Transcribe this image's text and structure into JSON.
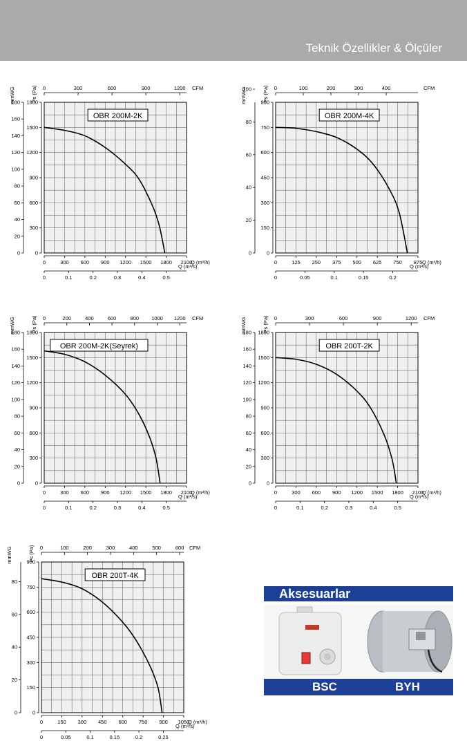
{
  "header": {
    "title": "Teknik Özellikler & Ölçüler"
  },
  "chart_data": [
    {
      "type": "line",
      "title": "OBR 200M-2K",
      "ylabel_left": "mmWG",
      "ylabel_right": "Ps (Pa)",
      "top_axis": {
        "label": "CFM",
        "ticks": [
          "0",
          "300",
          "600",
          "900",
          "1200"
        ],
        "max": 1260
      },
      "pa_ticks": [
        "0",
        "300",
        "600",
        "900",
        "1200",
        "1500",
        "1800"
      ],
      "pa_max": 1800,
      "mmwg_ticks": [
        "0",
        "20",
        "40",
        "60",
        "80",
        "100",
        "120",
        "140",
        "160",
        "180"
      ],
      "mmwg_max": 180,
      "x_ticks": [
        "0",
        "300",
        "600",
        "900",
        "1200",
        "1500",
        "1800",
        "2100"
      ],
      "x_label": "Q (m³/h)",
      "x_max": 2100,
      "bottom_axis": {
        "label": "Q (m³/s)",
        "ticks": [
          "0",
          "0.1",
          "0.2",
          "0.3",
          "0.4",
          "0.5"
        ],
        "max": 0.583
      },
      "grid": true,
      "series": [
        {
          "x": [
            0,
            300,
            600,
            900,
            1200,
            1400,
            1600,
            1700,
            1780
          ],
          "y": [
            1500,
            1465,
            1400,
            1260,
            1060,
            880,
            560,
            320,
            0
          ]
        }
      ]
    },
    {
      "type": "line",
      "title": "OBR 200M-4K",
      "ylabel_left": "mmWG",
      "ylabel_right": "Ps (Pa)",
      "top_axis": {
        "label": "CFM",
        "ticks": [
          "0",
          "100",
          "200",
          "300",
          "400"
        ],
        "max": 515
      },
      "pa_ticks": [
        "0",
        "150",
        "300",
        "450",
        "600",
        "750",
        "900"
      ],
      "pa_max": 900,
      "mmwg_ticks": [
        "0",
        "20",
        "40",
        "60",
        "80",
        "100"
      ],
      "mmwg_max": 92,
      "x_ticks": [
        "0",
        "125",
        "250",
        "375",
        "500",
        "625",
        "750",
        "875"
      ],
      "x_label": "Q (m³/h)",
      "x_max": 875,
      "bottom_axis": {
        "label": "Q (m³/s)",
        "ticks": [
          "0",
          "0.05",
          "0.1",
          "0.15",
          "0.2"
        ],
        "max": 0.243
      },
      "grid": true,
      "series": [
        {
          "x": [
            0,
            125,
            250,
            375,
            500,
            600,
            700,
            760,
            810
          ],
          "y": [
            750,
            745,
            725,
            690,
            620,
            530,
            380,
            240,
            0
          ]
        }
      ]
    },
    {
      "type": "line",
      "title": "OBR 200M-2K(Seyrek)",
      "ylabel_left": "mmWG",
      "ylabel_right": "Ps (Pa)",
      "top_axis": {
        "label": "CFM",
        "ticks": [
          "0",
          "200",
          "400",
          "600",
          "800",
          "1000",
          "1200"
        ],
        "max": 1260
      },
      "pa_ticks": [
        "0",
        "300",
        "600",
        "900",
        "1200",
        "1500",
        "1800"
      ],
      "pa_max": 1800,
      "mmwg_ticks": [
        "0",
        "20",
        "40",
        "60",
        "80",
        "100",
        "120",
        "140",
        "160",
        "180"
      ],
      "mmwg_max": 180,
      "x_ticks": [
        "0",
        "300",
        "600",
        "900",
        "1200",
        "1500",
        "1800",
        "2100"
      ],
      "x_label": "Q (m³/h)",
      "x_max": 2100,
      "bottom_axis": {
        "label": "Q (m³/s)",
        "ticks": [
          "0",
          "0.1",
          "0.2",
          "0.3",
          "0.4",
          "0.5"
        ],
        "max": 0.583
      },
      "grid": true,
      "series": [
        {
          "x": [
            0,
            300,
            600,
            900,
            1200,
            1400,
            1550,
            1650,
            1710
          ],
          "y": [
            1580,
            1540,
            1450,
            1290,
            1060,
            820,
            560,
            300,
            0
          ]
        }
      ]
    },
    {
      "type": "line",
      "title": "OBR 200T-2K",
      "ylabel_left": "mmWG",
      "ylabel_right": "Ps (Pa)",
      "top_axis": {
        "label": "CFM",
        "ticks": [
          "0",
          "300",
          "600",
          "900",
          "1200"
        ],
        "max": 1260
      },
      "pa_ticks": [
        "0",
        "300",
        "600",
        "900",
        "1200",
        "1500",
        "1800"
      ],
      "pa_max": 1800,
      "mmwg_ticks": [
        "0",
        "20",
        "40",
        "60",
        "80",
        "100",
        "120",
        "140",
        "160",
        "180"
      ],
      "mmwg_max": 180,
      "x_ticks": [
        "0",
        "300",
        "600",
        "900",
        "1200",
        "1500",
        "1800",
        "2100"
      ],
      "x_label": "Q (m³/h)",
      "x_max": 2100,
      "bottom_axis": {
        "label": "Q (m³/s)",
        "ticks": [
          "0",
          "0.1",
          "0.2",
          "0.3",
          "0.4",
          "0.5"
        ],
        "max": 0.583
      },
      "grid": true,
      "series": [
        {
          "x": [
            0,
            300,
            600,
            900,
            1200,
            1400,
            1600,
            1720,
            1780
          ],
          "y": [
            1500,
            1480,
            1420,
            1300,
            1100,
            900,
            580,
            280,
            0
          ]
        }
      ]
    },
    {
      "type": "line",
      "title": "OBR 200T-4K",
      "ylabel_left": "mmWG",
      "ylabel_right": "Ps (Pa)",
      "top_axis": {
        "label": "CFM",
        "ticks": [
          "0",
          "100",
          "200",
          "300",
          "400",
          "500",
          "600"
        ],
        "max": 618
      },
      "pa_ticks": [
        "0",
        "150",
        "300",
        "450",
        "600",
        "750",
        "900"
      ],
      "pa_max": 900,
      "mmwg_ticks": [
        "0",
        "20",
        "40",
        "60",
        "80"
      ],
      "mmwg_max": 92,
      "x_ticks": [
        "0",
        "150",
        "300",
        "450",
        "600",
        "750",
        "900",
        "1050"
      ],
      "x_label": "Q (m³/h)",
      "x_max": 1050,
      "bottom_axis": {
        "label": "Q (m³/s)",
        "ticks": [
          "0",
          "0.05",
          "0.1",
          "0.15",
          "0.2",
          "0.25"
        ],
        "max": 0.292
      },
      "grid": true,
      "series": [
        {
          "x": [
            0,
            150,
            300,
            450,
            600,
            700,
            800,
            860,
            890
          ],
          "y": [
            800,
            780,
            740,
            660,
            540,
            430,
            280,
            150,
            0
          ]
        }
      ]
    }
  ],
  "accessories": {
    "title": "Aksesuarlar",
    "items": [
      {
        "label": "BSC"
      },
      {
        "label": "BYH"
      }
    ],
    "colors": {
      "bar": "#1d3f95"
    }
  }
}
